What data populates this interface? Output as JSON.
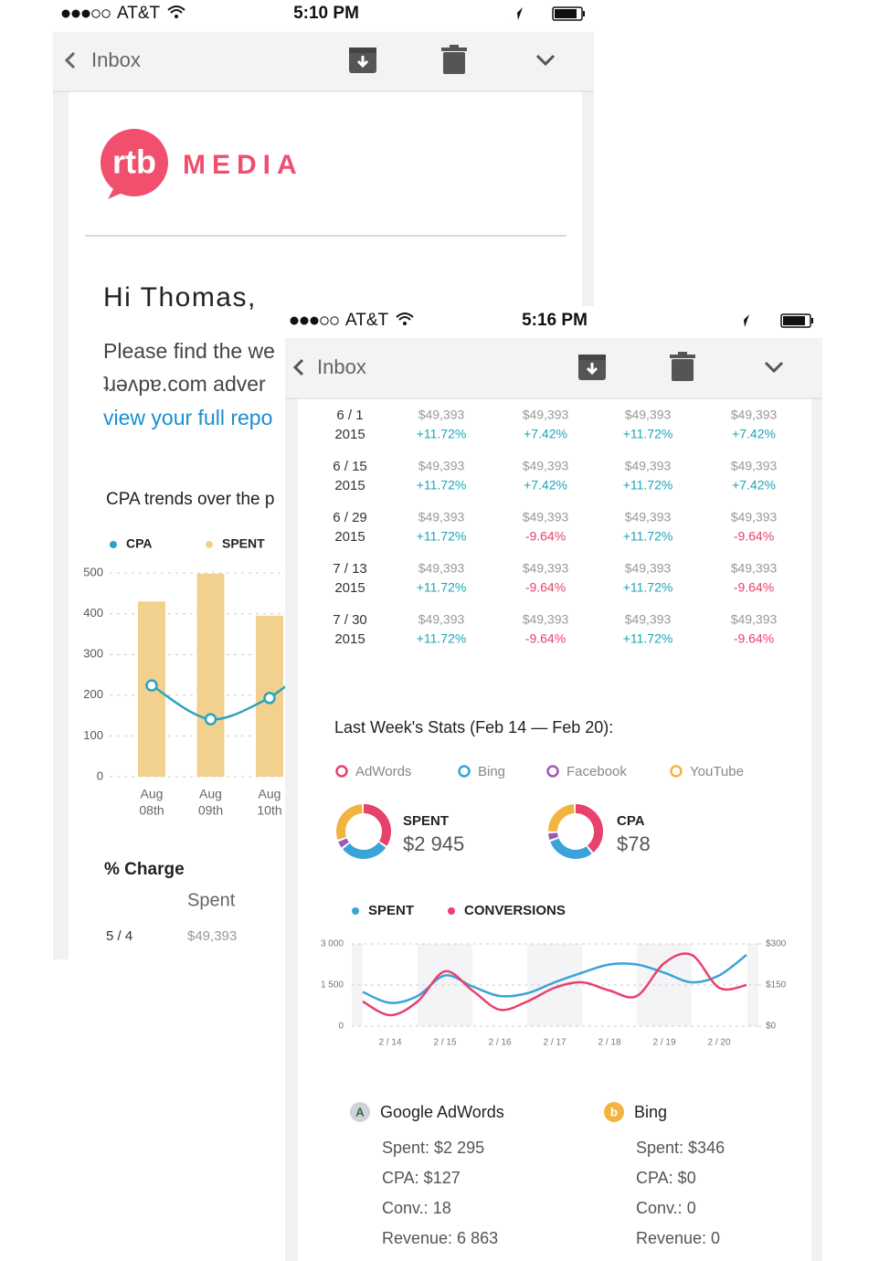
{
  "back": {
    "status": {
      "carrier": "AT&T",
      "time": "5:10 PM"
    },
    "nav": {
      "back": "Inbox"
    },
    "logo": {
      "mark": "rtb",
      "name": "MEDIA"
    },
    "greeting": "Hi Thomas,",
    "body_lines": [
      "Please find the we",
      "ʇɹǝʌpɐ.com adver"
    ],
    "link": "view your full repo",
    "chart": {
      "type": "bar-line",
      "title": "CPA trends over the p",
      "categories": [
        [
          "Aug",
          "08th"
        ],
        [
          "Aug",
          "09th"
        ],
        [
          "Aug",
          "10th"
        ]
      ],
      "series": [
        {
          "name": "CPA",
          "color": "#2ba3c0",
          "type": "line",
          "values": [
            224,
            141,
            193
          ]
        },
        {
          "name": "SPENT",
          "color": "#f2d08e",
          "type": "bar",
          "values": [
            430,
            498,
            395
          ]
        }
      ],
      "ylim": [
        0,
        500
      ],
      "yticks": [
        0,
        100,
        200,
        300,
        400,
        500
      ],
      "grid": true
    },
    "table": {
      "title": "% Charge",
      "header": "Spent",
      "rows": [
        [
          "5 / 4",
          "$49,393"
        ]
      ]
    }
  },
  "front": {
    "status": {
      "carrier": "AT&T",
      "time": "5:16 PM"
    },
    "nav": {
      "back": "Inbox"
    },
    "table": {
      "rows": [
        {
          "date": "6 / 1",
          "year": "2015",
          "cells": [
            [
              "$49,393",
              "+11.72%"
            ],
            [
              "$49,393",
              "+7.42%"
            ],
            [
              "$49,393",
              "+11.72%"
            ],
            [
              "$49,393",
              "+7.42%"
            ]
          ]
        },
        {
          "date": "6 / 15",
          "year": "2015",
          "cells": [
            [
              "$49,393",
              "+11.72%"
            ],
            [
              "$49,393",
              "+7.42%"
            ],
            [
              "$49,393",
              "+11.72%"
            ],
            [
              "$49,393",
              "+7.42%"
            ]
          ]
        },
        {
          "date": "6 / 29",
          "year": "2015",
          "cells": [
            [
              "$49,393",
              "+11.72%"
            ],
            [
              "$49,393",
              "-9.64%"
            ],
            [
              "$49,393",
              "+11.72%"
            ],
            [
              "$49,393",
              "-9.64%"
            ]
          ]
        },
        {
          "date": "7 / 13",
          "year": "2015",
          "cells": [
            [
              "$49,393",
              "+11.72%"
            ],
            [
              "$49,393",
              "-9.64%"
            ],
            [
              "$49,393",
              "+11.72%"
            ],
            [
              "$49,393",
              "-9.64%"
            ]
          ]
        },
        {
          "date": "7 / 30",
          "year": "2015",
          "cells": [
            [
              "$49,393",
              "+11.72%"
            ],
            [
              "$49,393",
              "-9.64%"
            ],
            [
              "$49,393",
              "+11.72%"
            ],
            [
              "$49,393",
              "-9.64%"
            ]
          ]
        }
      ]
    },
    "stats": {
      "title": "Last Week's Stats (Feb 14 — Feb 20):",
      "sources": [
        {
          "name": "AdWords",
          "color": "#e8416b"
        },
        {
          "name": "Bing",
          "color": "#3aa3d8"
        },
        {
          "name": "Facebook",
          "color": "#9b59b6"
        },
        {
          "name": "YouTube",
          "color": "#f2b441"
        }
      ],
      "donuts": [
        {
          "type": "donut",
          "label": "SPENT",
          "value": "$2 945",
          "values": [
            35,
            30,
            5,
            30
          ]
        },
        {
          "type": "donut",
          "label": "CPA",
          "value": "$78",
          "values": [
            40,
            30,
            5,
            25
          ]
        }
      ]
    },
    "line_chart": {
      "type": "line",
      "categories": [
        null,
        "2 / 14",
        null,
        "2 / 15",
        null,
        "2 / 16",
        null,
        "2 / 17",
        null,
        "2 / 18",
        null,
        "2 / 19",
        null,
        "2 / 20",
        null
      ],
      "series": [
        {
          "name": "SPENT",
          "color": "#3aa3d8",
          "values": [
            1250,
            850,
            1100,
            1850,
            1450,
            1100,
            1200,
            1600,
            1950,
            2250,
            2250,
            1950,
            1600,
            1850,
            2600
          ]
        },
        {
          "name": "CONVERSIONS",
          "color": "#e8416b",
          "axis": "y2",
          "values": [
            90,
            40,
            90,
            200,
            130,
            60,
            90,
            140,
            160,
            130,
            110,
            230,
            260,
            140,
            150
          ]
        }
      ],
      "ylim": [
        0,
        3000
      ],
      "yticks": [
        0,
        {
          "value": 1500,
          "label": "1 500"
        },
        {
          "value": 3000,
          "label": "3 000"
        }
      ],
      "y2lim": [
        0,
        300
      ],
      "y2ticks": [
        {
          "value": 0,
          "label": "$0"
        },
        {
          "value": 150,
          "label": "$150"
        },
        {
          "value": 300,
          "label": "$300"
        }
      ],
      "grid": true
    },
    "cards": [
      {
        "name": "Google AdWords",
        "icon": "A",
        "lines": [
          "Spent: $2 295",
          "CPA: $127",
          "Conv.: 18",
          "Revenue: 6 863"
        ]
      },
      {
        "name": "Bing",
        "icon": "b",
        "lines": [
          "Spent: $346",
          "CPA: $0",
          "Conv.: 0",
          "Revenue: 0"
        ]
      }
    ]
  }
}
